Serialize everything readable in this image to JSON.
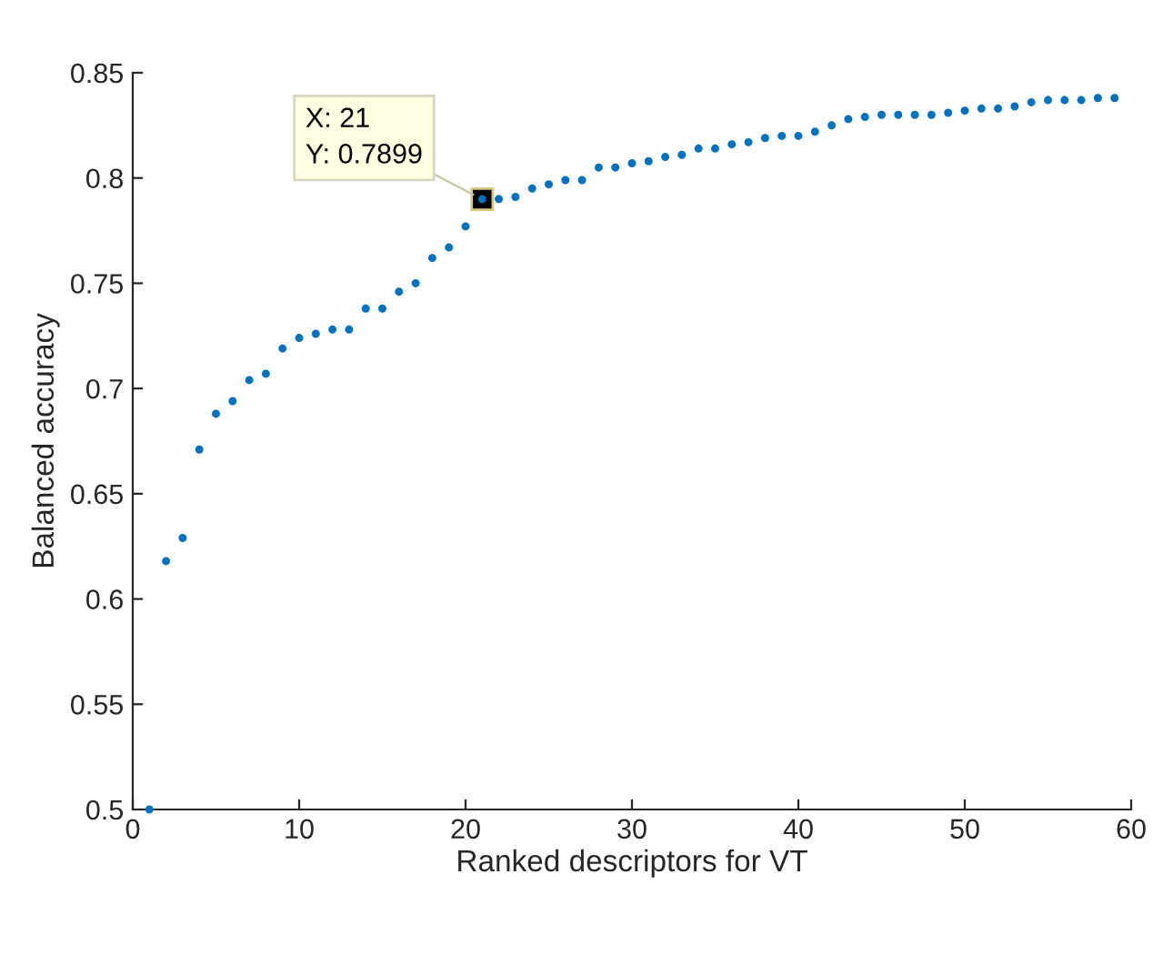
{
  "chart_data": {
    "type": "scatter",
    "xlabel": "Ranked descriptors for VT",
    "ylabel": "Balanced accuracy",
    "x": [
      1,
      2,
      3,
      4,
      5,
      6,
      7,
      8,
      9,
      10,
      11,
      12,
      13,
      14,
      15,
      16,
      17,
      18,
      19,
      20,
      21,
      22,
      23,
      24,
      25,
      26,
      27,
      28,
      29,
      30,
      31,
      32,
      33,
      34,
      35,
      36,
      37,
      38,
      39,
      40,
      41,
      42,
      43,
      44,
      45,
      46,
      47,
      48,
      49,
      50,
      51,
      52,
      53,
      54,
      55,
      56,
      57,
      58,
      59
    ],
    "series": [
      {
        "color": "#0072bd",
        "values": [
          0.5,
          0.618,
          0.629,
          0.671,
          0.688,
          0.694,
          0.704,
          0.707,
          0.719,
          0.724,
          0.726,
          0.728,
          0.728,
          0.738,
          0.738,
          0.746,
          0.75,
          0.762,
          0.767,
          0.777,
          0.7899,
          0.79,
          0.791,
          0.795,
          0.797,
          0.799,
          0.799,
          0.805,
          0.805,
          0.807,
          0.808,
          0.81,
          0.811,
          0.814,
          0.814,
          0.816,
          0.817,
          0.819,
          0.82,
          0.82,
          0.822,
          0.825,
          0.828,
          0.829,
          0.83,
          0.83,
          0.83,
          0.83,
          0.831,
          0.832,
          0.833,
          0.833,
          0.834,
          0.836,
          0.837,
          0.837,
          0.837,
          0.838,
          0.838
        ]
      }
    ],
    "annotations": [
      {
        "text": "X: 21\nY: 0.7899",
        "x": 21,
        "y": 0.7899
      }
    ],
    "xlim": [
      0,
      60
    ],
    "xticks": [
      0,
      10,
      20,
      30,
      40,
      50,
      60
    ],
    "ylim": [
      0.5,
      0.85
    ],
    "yticks": [
      0.5,
      0.55,
      0.6,
      0.65,
      0.7,
      0.75,
      0.8,
      0.85
    ],
    "marker": "circle",
    "grid": false,
    "legend": false
  }
}
